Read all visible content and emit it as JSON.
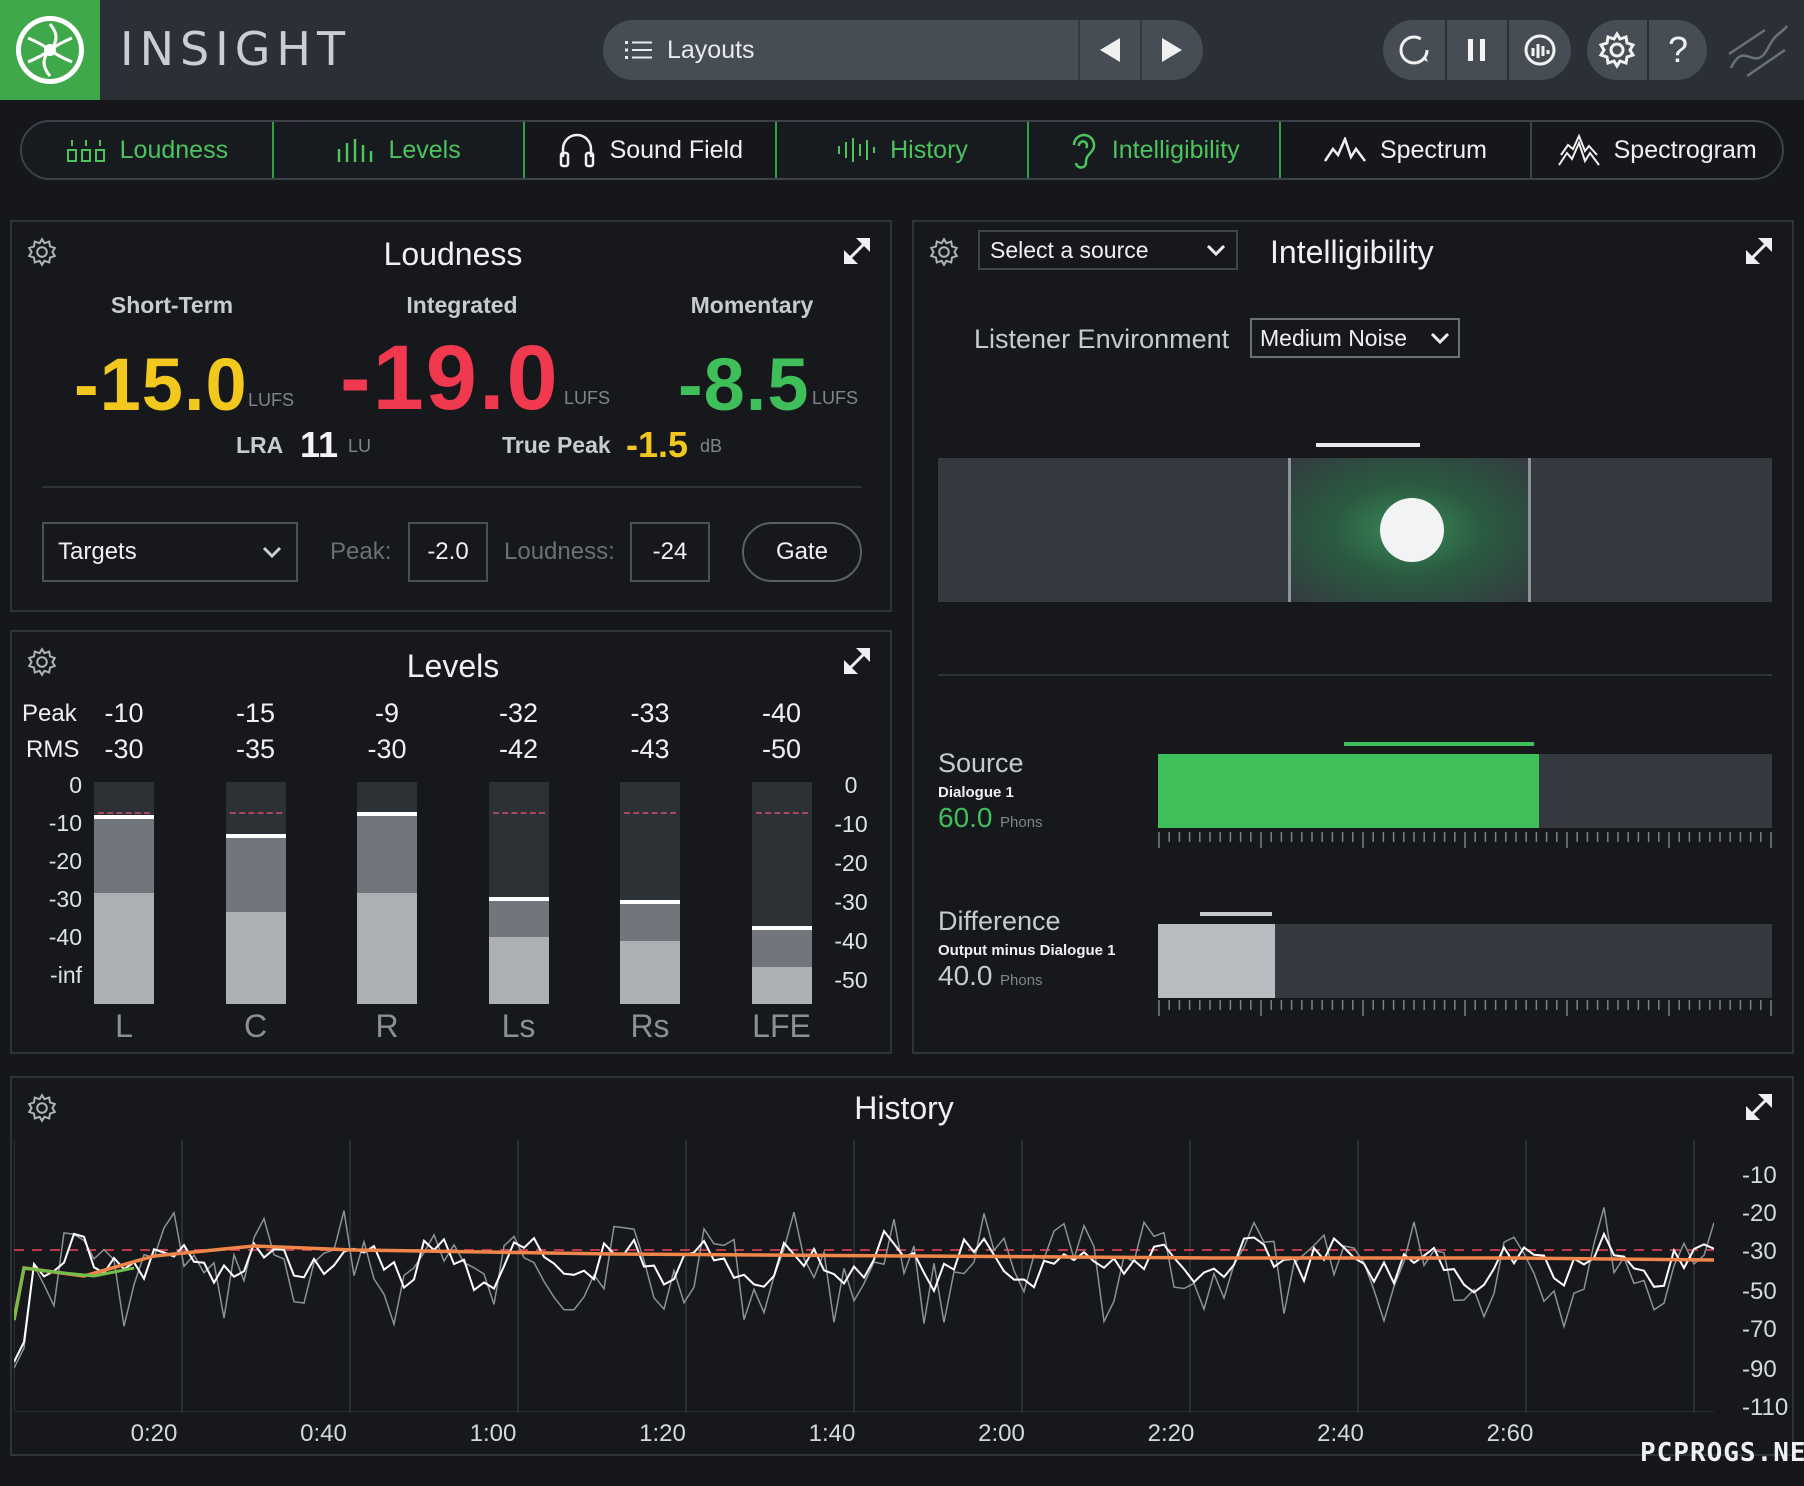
{
  "app": {
    "title": "INSIGHT"
  },
  "header": {
    "layouts_label": "Layouts"
  },
  "tabs": [
    {
      "label": "Loudness",
      "active": true
    },
    {
      "label": "Levels",
      "active": true
    },
    {
      "label": "Sound Field",
      "active": false
    },
    {
      "label": "History",
      "active": true
    },
    {
      "label": "Intelligibility",
      "active": true
    },
    {
      "label": "Spectrum",
      "active": false
    },
    {
      "label": "Spectrogram",
      "active": false
    }
  ],
  "loudness": {
    "title": "Loudness",
    "short_term": {
      "label": "Short-Term",
      "value": "-15.0",
      "unit": "LUFS",
      "color": "#f2c81e"
    },
    "integrated": {
      "label": "Integrated",
      "value": "-19.0",
      "unit": "LUFS",
      "color": "#f0384f"
    },
    "momentary": {
      "label": "Momentary",
      "value": "-8.5",
      "unit": "LUFS",
      "color": "#3fbf5a"
    },
    "lra": {
      "label": "LRA",
      "value": "11",
      "unit": "LU"
    },
    "true_peak": {
      "label": "True Peak",
      "value": "-1.5",
      "unit": "dB",
      "color": "#f2c81e"
    },
    "targets_select": "Targets",
    "peak_label": "Peak:",
    "peak_value": "-2.0",
    "loudness_label": "Loudness:",
    "loudness_value": "-24",
    "gate_label": "Gate"
  },
  "levels": {
    "title": "Levels",
    "peak_label": "Peak",
    "rms_label": "RMS",
    "left_scale": [
      "0",
      "-10",
      "-20",
      "-30",
      "-40",
      "-inf"
    ],
    "right_scale": [
      "0",
      "-10",
      "-20",
      "-30",
      "-40",
      "-50"
    ],
    "channels": [
      {
        "name": "L",
        "peak": "-10",
        "rms": "-30",
        "peak_db": -10,
        "rms_db": -30,
        "hold_db": -9
      },
      {
        "name": "C",
        "peak": "-15",
        "rms": "-35",
        "peak_db": -15,
        "rms_db": -35,
        "hold_db": -14
      },
      {
        "name": "R",
        "peak": "-9",
        "rms": "-30",
        "peak_db": -9,
        "rms_db": -30,
        "hold_db": -8
      },
      {
        "name": "Ls",
        "peak": "-32",
        "rms": "-42",
        "peak_db": -32,
        "rms_db": -42,
        "hold_db": -31
      },
      {
        "name": "Rs",
        "peak": "-33",
        "rms": "-43",
        "peak_db": -33,
        "rms_db": -43,
        "hold_db": -32
      },
      {
        "name": "LFE",
        "peak": "-40",
        "rms": "-50",
        "peak_db": -40,
        "rms_db": -50,
        "hold_db": -39
      }
    ]
  },
  "intelligibility": {
    "title": "Intelligibility",
    "source_select": "Select a source",
    "listener_label": "Listener Environment",
    "listener_value": "Medium Noise",
    "source": {
      "label": "Source",
      "sub": "Dialogue 1",
      "value": "60.0",
      "unit": "Phons",
      "fill": 0.62
    },
    "difference": {
      "label": "Difference",
      "sub": "Output minus Dialogue 1",
      "value": "40.0",
      "unit": "Phons",
      "fill": 0.19
    }
  },
  "history": {
    "title": "History",
    "x_ticks": [
      "0:20",
      "0:40",
      "1:00",
      "1:20",
      "1:40",
      "2:00",
      "2:20",
      "2:40",
      "2:60"
    ],
    "y_ticks": [
      "-10",
      "-20",
      "-30",
      "-50",
      "-70",
      "-90",
      "-110"
    ]
  },
  "watermark": "PCPROGS.NET",
  "colors": {
    "accent": "#3fbf5a",
    "header_bg": "#2b3036",
    "panel_bg": "#16181c"
  }
}
